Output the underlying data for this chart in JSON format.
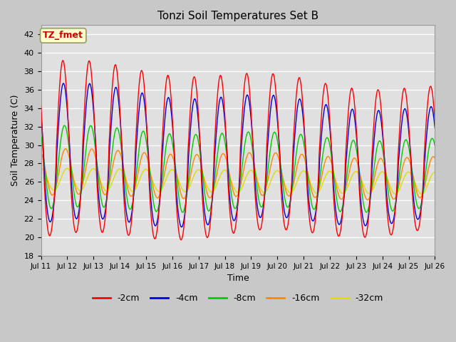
{
  "title": "Tonzi Soil Temperatures Set B",
  "xlabel": "Time",
  "ylabel": "Soil Temperature (C)",
  "ylim": [
    18,
    43
  ],
  "yticks": [
    18,
    20,
    22,
    24,
    26,
    28,
    30,
    32,
    34,
    36,
    38,
    40,
    42
  ],
  "fig_bg": "#c8c8c8",
  "plot_bg": "#e0e0e0",
  "annotation_text": "TZ_fmet",
  "annotation_bg": "#ffffcc",
  "annotation_fg": "#cc0000",
  "annotation_border": "#999966",
  "legend_entries": [
    "-2cm",
    "-4cm",
    "-8cm",
    "-16cm",
    "-32cm"
  ],
  "line_colors": [
    "#ff0000",
    "#0000dd",
    "#00cc00",
    "#ff8800",
    "#dddd00"
  ],
  "n_days": 15,
  "start_day": 11
}
